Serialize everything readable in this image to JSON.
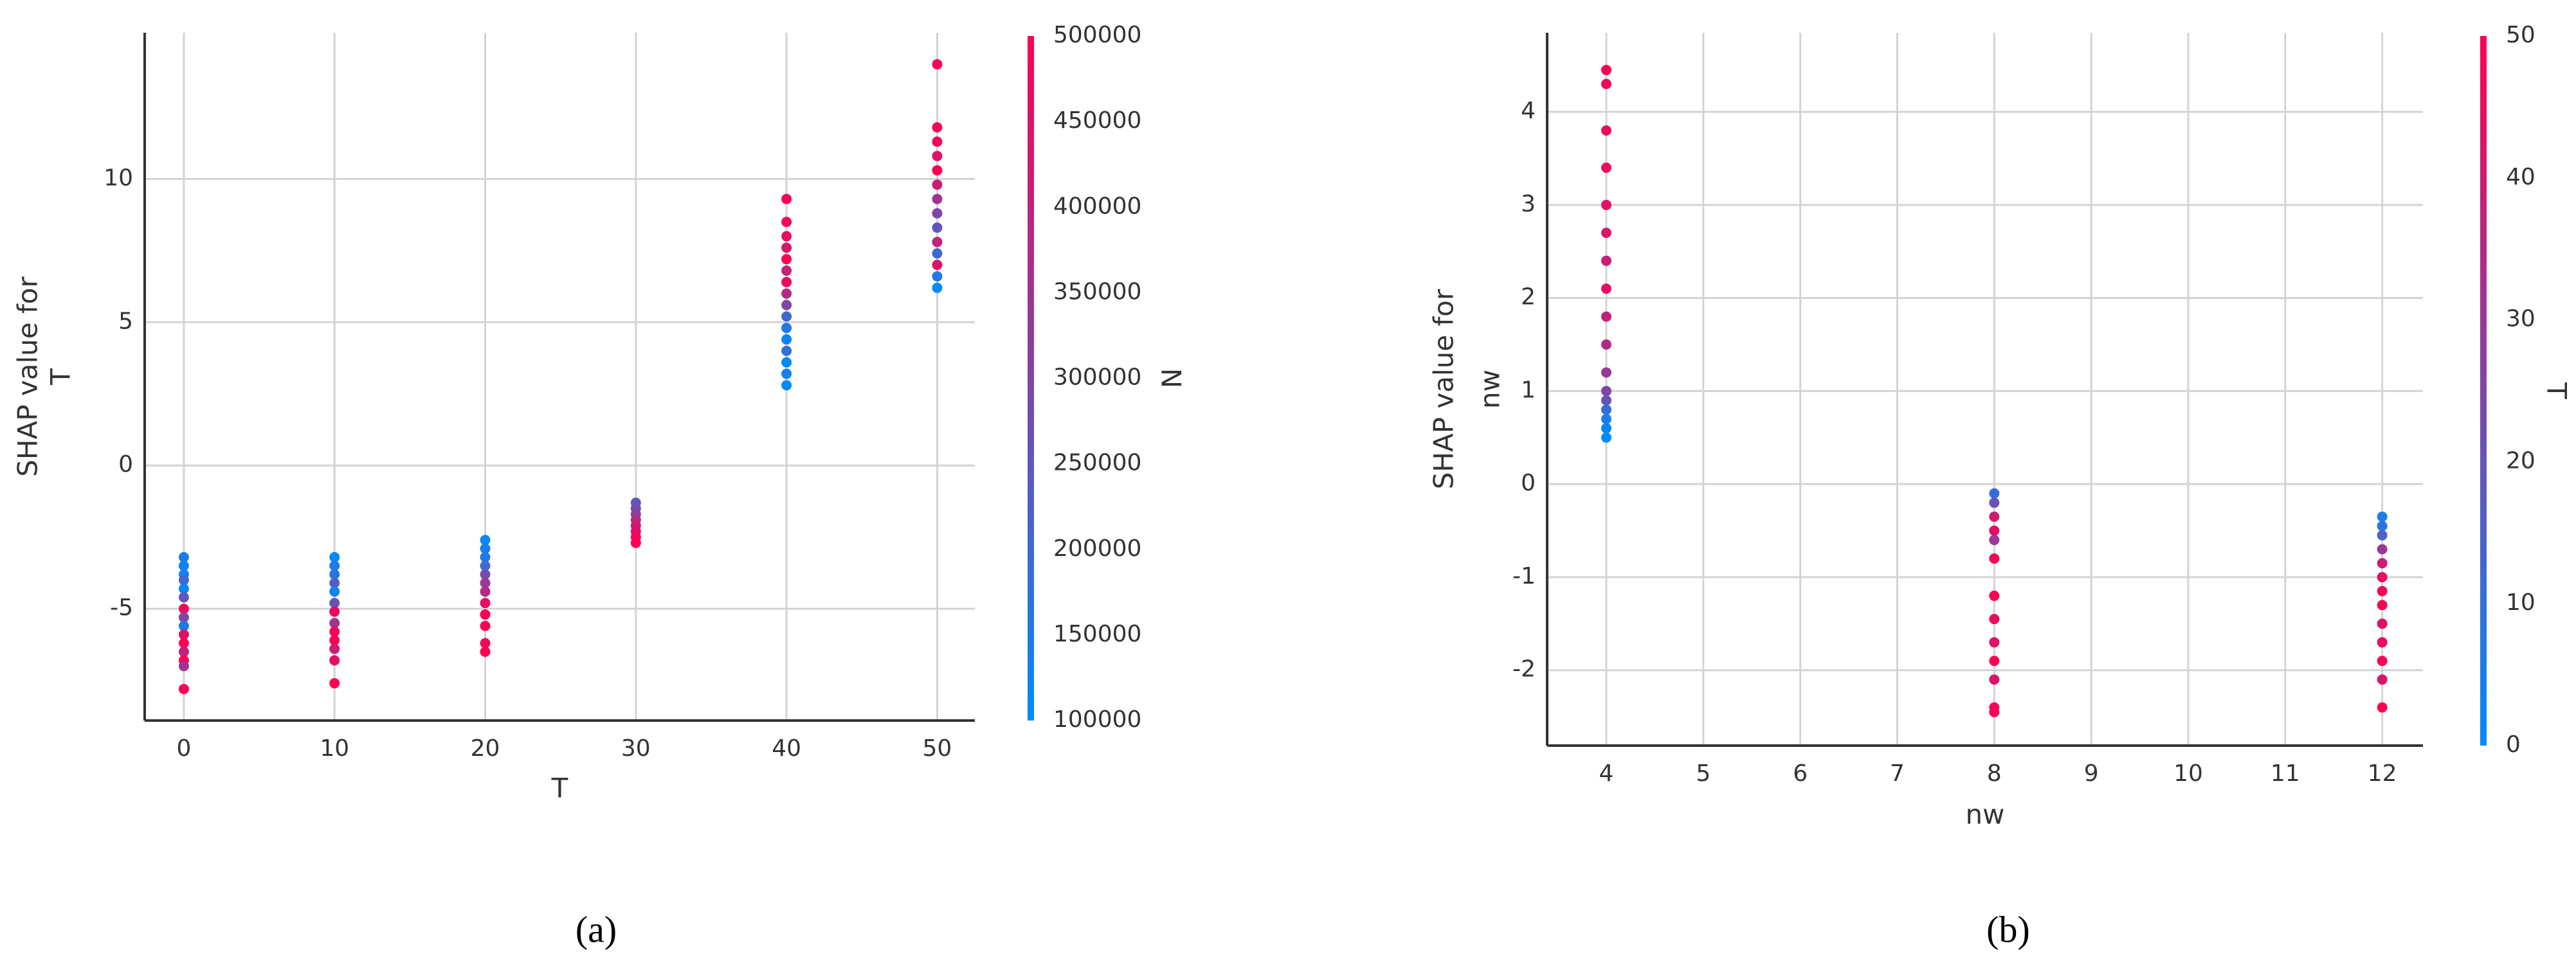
{
  "chart_data": [
    {
      "type": "scatter",
      "caption": "(a)",
      "xlabel": "T",
      "ylabel": [
        "SHAP value for",
        "T"
      ],
      "xlim": [
        -2.6,
        52.5
      ],
      "ylim": [
        -8.9,
        15.1
      ],
      "xticks": [
        0,
        10,
        20,
        30,
        40,
        50
      ],
      "yticks": [
        -5,
        0,
        5,
        10
      ],
      "grid": true,
      "colorbar": {
        "label": "N",
        "lim": [
          100000,
          500000
        ],
        "ticks": [
          100000,
          150000,
          200000,
          250000,
          300000,
          350000,
          400000,
          450000,
          500000
        ],
        "colors": [
          "#008bfb",
          "#ff0052"
        ]
      },
      "x": [
        0,
        0,
        0,
        0,
        0,
        0,
        0,
        0,
        0,
        0,
        0,
        0,
        0,
        0,
        0,
        10,
        10,
        10,
        10,
        10,
        10,
        10,
        10,
        10,
        10,
        10,
        10,
        10,
        20,
        20,
        20,
        20,
        20,
        20,
        20,
        20,
        20,
        20,
        20,
        20,
        30,
        30,
        30,
        30,
        30,
        30,
        30,
        30,
        40,
        40,
        40,
        40,
        40,
        40,
        40,
        40,
        40,
        40,
        40,
        40,
        40,
        40,
        40,
        40,
        50,
        50,
        50,
        50,
        50,
        50,
        50,
        50,
        50,
        50,
        50,
        50,
        50,
        50
      ],
      "y": [
        -3.2,
        -3.5,
        -3.8,
        -4.0,
        -4.3,
        -4.6,
        -5.0,
        -5.3,
        -5.6,
        -5.9,
        -6.2,
        -6.5,
        -6.8,
        -7.0,
        -7.8,
        -3.2,
        -3.5,
        -3.8,
        -4.1,
        -4.4,
        -4.8,
        -5.1,
        -5.5,
        -5.8,
        -6.1,
        -6.4,
        -6.8,
        -7.6,
        -2.6,
        -2.9,
        -3.2,
        -3.5,
        -3.8,
        -4.1,
        -4.4,
        -4.8,
        -5.2,
        -5.6,
        -6.2,
        -6.5,
        -1.3,
        -1.5,
        -1.7,
        -1.9,
        -2.1,
        -2.3,
        -2.5,
        -2.7,
        9.3,
        8.5,
        8.0,
        7.6,
        7.2,
        6.8,
        6.4,
        6.0,
        5.6,
        5.2,
        4.8,
        4.4,
        4.0,
        3.6,
        3.2,
        2.8,
        14.0,
        11.8,
        11.3,
        10.8,
        10.3,
        9.8,
        9.3,
        8.8,
        8.3,
        7.8,
        7.4,
        7.0,
        6.6,
        6.2
      ],
      "c": [
        150000,
        120000,
        130000,
        200000,
        110000,
        250000,
        480000,
        300000,
        150000,
        450000,
        500000,
        400000,
        490000,
        350000,
        500000,
        110000,
        140000,
        160000,
        220000,
        120000,
        260000,
        470000,
        350000,
        480000,
        500000,
        420000,
        460000,
        500000,
        110000,
        130000,
        150000,
        200000,
        280000,
        340000,
        380000,
        460000,
        490000,
        500000,
        470000,
        500000,
        250000,
        280000,
        320000,
        380000,
        420000,
        450000,
        480000,
        500000,
        500000,
        480000,
        460000,
        440000,
        500000,
        400000,
        470000,
        380000,
        300000,
        200000,
        150000,
        120000,
        180000,
        110000,
        130000,
        100000,
        500000,
        480000,
        470000,
        450000,
        500000,
        420000,
        350000,
        300000,
        250000,
        400000,
        200000,
        450000,
        150000,
        100000
      ]
    },
    {
      "type": "scatter",
      "caption": "(b)",
      "xlabel": "nw",
      "ylabel": [
        "SHAP value for",
        "nw"
      ],
      "xlim": [
        3.39,
        12.42
      ],
      "ylim": [
        -2.81,
        4.85
      ],
      "xticks": [
        4,
        5,
        6,
        7,
        8,
        9,
        10,
        11,
        12
      ],
      "yticks": [
        -2,
        -1,
        0,
        1,
        2,
        3,
        4
      ],
      "grid": true,
      "colorbar": {
        "label": "T",
        "lim": [
          0,
          50
        ],
        "ticks": [
          0,
          10,
          20,
          30,
          40,
          50
        ],
        "colors": [
          "#008bfb",
          "#ff0052"
        ]
      },
      "x": [
        4,
        4,
        4,
        4,
        4,
        4,
        4,
        4,
        4,
        4,
        4,
        4,
        4,
        4,
        4,
        4,
        4,
        8,
        8,
        8,
        8,
        8,
        8,
        8,
        8,
        8,
        8,
        8,
        8,
        8,
        12,
        12,
        12,
        12,
        12,
        12,
        12,
        12,
        12,
        12,
        12,
        12,
        12
      ],
      "y": [
        4.45,
        4.3,
        3.8,
        3.4,
        3.0,
        2.7,
        2.4,
        2.1,
        1.8,
        1.5,
        1.2,
        1.0,
        0.9,
        0.8,
        0.7,
        0.6,
        0.5,
        -0.1,
        -0.2,
        -0.35,
        -0.5,
        -0.6,
        -0.8,
        -1.2,
        -1.45,
        -1.7,
        -1.9,
        -2.1,
        -2.4,
        -2.45,
        -0.35,
        -0.45,
        -0.55,
        -0.7,
        -0.85,
        -1.0,
        -1.15,
        -1.3,
        -1.5,
        -1.7,
        -1.9,
        -2.1,
        -2.4
      ],
      "c": [
        50,
        48,
        46,
        45,
        44,
        42,
        40,
        45,
        38,
        35,
        30,
        25,
        20,
        10,
        5,
        2,
        0,
        10,
        20,
        40,
        45,
        30,
        48,
        50,
        46,
        44,
        50,
        42,
        50,
        48,
        5,
        8,
        15,
        30,
        40,
        45,
        48,
        50,
        44,
        46,
        50,
        42,
        50
      ]
    }
  ]
}
